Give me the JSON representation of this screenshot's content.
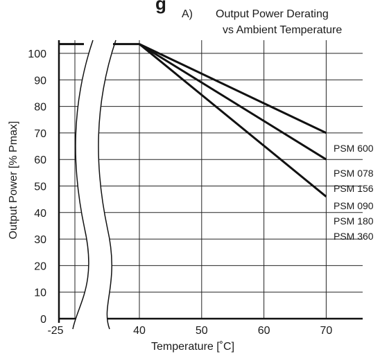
{
  "header": {
    "cut_text": "g",
    "label": "A)",
    "title_line1": "Output Power Derating",
    "title_line2": "vs Ambient Temperature"
  },
  "chart_data": {
    "type": "line",
    "title": "Output Power Derating vs Ambient Temperature",
    "xlabel": "Temperature [˚C]",
    "ylabel": "Output Power [% Pmax]",
    "xticks": [
      "-25",
      "40",
      "50",
      "60",
      "70"
    ],
    "yticks": [
      0,
      10,
      20,
      30,
      40,
      50,
      60,
      70,
      80,
      90,
      100
    ],
    "xlim": [
      30,
      75
    ],
    "ylim": [
      0,
      105
    ],
    "x_axis_break": "between -25 and 40",
    "grid": true,
    "series": [
      {
        "name": "PSM 600",
        "labels": [
          "PSM 600"
        ],
        "x": [
          -25,
          40,
          70
        ],
        "y": [
          103.5,
          103.5,
          70
        ]
      },
      {
        "name": "PSM 078 / PSM 156",
        "labels": [
          "PSM 078",
          "PSM 156"
        ],
        "x": [
          -25,
          40,
          70
        ],
        "y": [
          103.5,
          103.5,
          60
        ]
      },
      {
        "name": "PSM 090 / PSM 180 / PSM 360",
        "labels": [
          "PSM 090",
          "PSM 180",
          "PSM 360"
        ],
        "x": [
          -25,
          40,
          70
        ],
        "y": [
          103.5,
          103.5,
          46
        ]
      }
    ]
  }
}
